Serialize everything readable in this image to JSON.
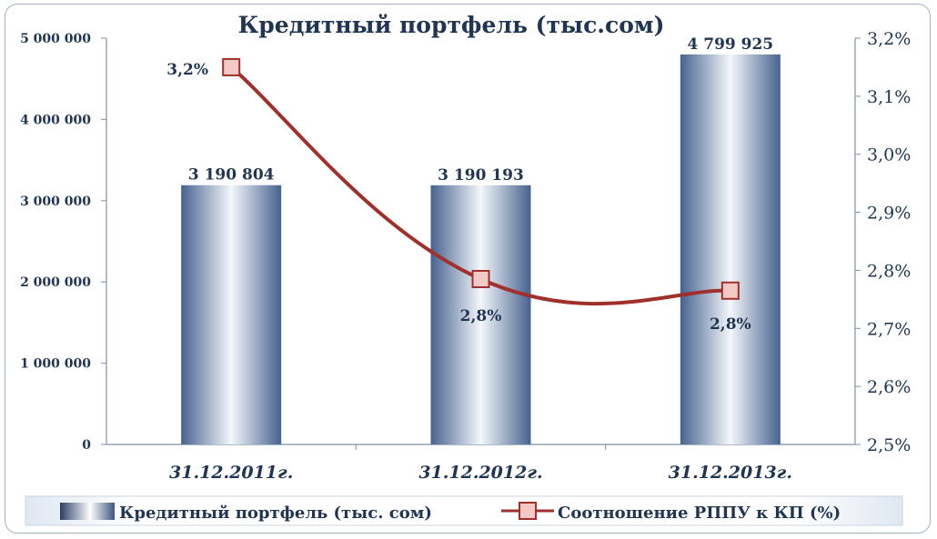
{
  "chart_data": {
    "type": "bar",
    "title": "Кредитный портфель (тыс.сом)",
    "categories": [
      "31.12.2011г.",
      "31.12.2012г.",
      "31.12.2013г."
    ],
    "series": [
      {
        "name": "Кредитный портфель (тыс. сом)",
        "type": "bar",
        "axis": "left",
        "values": [
          3190804,
          3190193,
          4799925
        ],
        "labels": [
          "3 190 804",
          "3 190 193",
          "4 799 925"
        ]
      },
      {
        "name": "Соотношение РППУ к КП (%)",
        "type": "line",
        "axis": "right",
        "values": [
          3.15,
          2.785,
          2.765
        ],
        "labels": [
          "3,2%",
          "2,8%",
          "2,8%"
        ]
      }
    ],
    "y_left": {
      "ylim": [
        0,
        5000000
      ],
      "ticks": [
        "0",
        "1 000 000",
        "2 000 000",
        "3 000 000",
        "4 000 000",
        "5 000 000"
      ]
    },
    "y_right": {
      "ylim": [
        2.5,
        3.2
      ],
      "ticks": [
        "2,5%",
        "2,6%",
        "2,7%",
        "2,8%",
        "2,9%",
        "3,0%",
        "3,1%",
        "3,2%"
      ]
    },
    "grid": false,
    "legend": "bottom",
    "colors": {
      "bar_dark": "#46628f",
      "bar_light": "#ffffff",
      "line": "#a0302c",
      "marker_fill": "#f2c9c4",
      "text": "#1f3552",
      "axis": "#7f8fa6"
    }
  }
}
